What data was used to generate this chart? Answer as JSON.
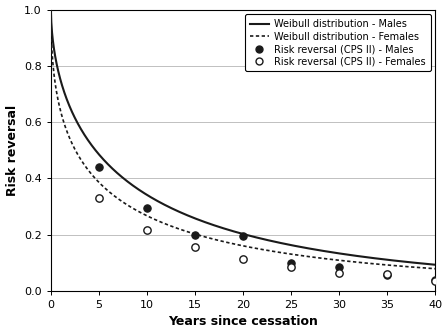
{
  "xlabel": "Years since cessation",
  "ylabel": "Risk reversal",
  "xlim": [
    0,
    40
  ],
  "ylim": [
    0,
    1.0
  ],
  "xticks": [
    0,
    5,
    10,
    15,
    20,
    25,
    30,
    35,
    40
  ],
  "yticks": [
    0.0,
    0.2,
    0.4,
    0.6,
    0.8,
    1.0
  ],
  "males_lam": 0.82,
  "males_k": 0.44,
  "females_lam": 0.6,
  "females_k": 0.55,
  "males_points_x": [
    5,
    10,
    15,
    20,
    25,
    30,
    35,
    40
  ],
  "males_points_y": [
    0.44,
    0.295,
    0.2,
    0.195,
    0.1,
    0.085,
    0.055,
    0.038
  ],
  "females_points_x": [
    5,
    10,
    15,
    20,
    25,
    30,
    35,
    40
  ],
  "females_points_y": [
    0.33,
    0.215,
    0.155,
    0.115,
    0.085,
    0.063,
    0.06,
    0.035
  ],
  "legend_labels": [
    "Weibull distribution - Males",
    "Weibull distribution - Females",
    "Risk reversal (CPS II) - Males",
    "Risk reversal (CPS II) - Females"
  ],
  "line_color": "#1a1a1a",
  "background_color": "#ffffff",
  "grid_color": "#c0c0c0",
  "font_size": 8,
  "label_font_size": 9
}
